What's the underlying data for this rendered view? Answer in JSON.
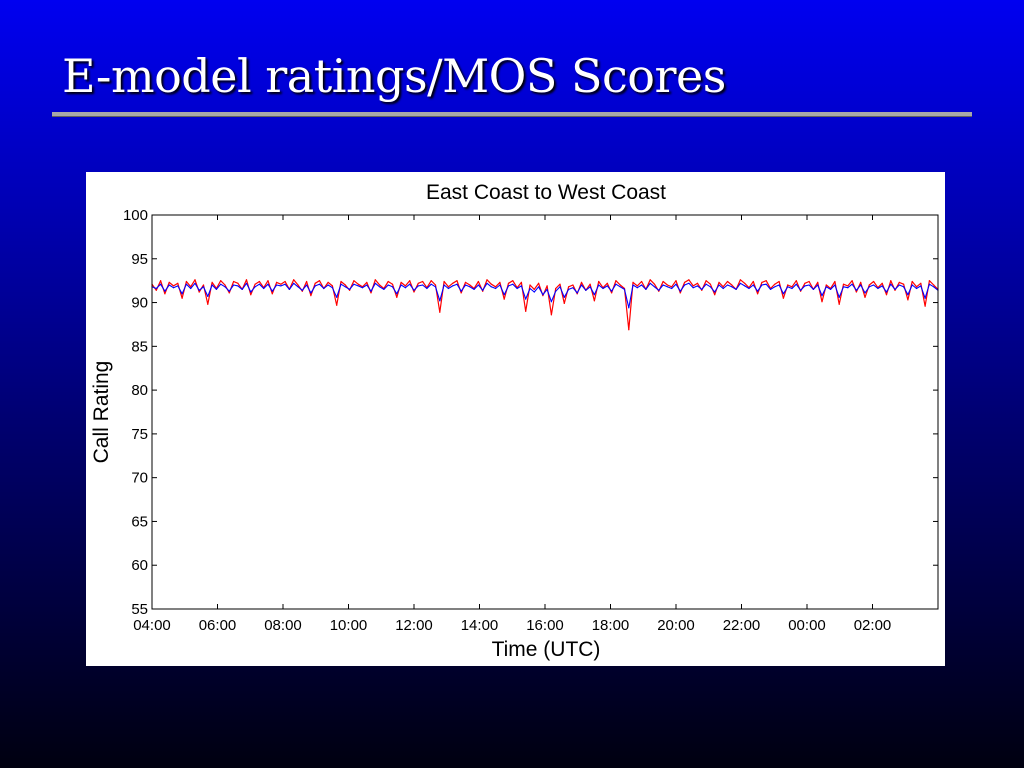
{
  "slide": {
    "title": "E-model ratings/MOS Scores"
  },
  "chart_data": {
    "type": "line",
    "title": "East Coast to West Coast",
    "xlabel": "Time (UTC)",
    "ylabel": "Call Rating",
    "ylim": [
      55,
      100
    ],
    "xlim_hours": [
      0,
      24
    ],
    "grid": false,
    "x_ticks": [
      "04:00",
      "06:00",
      "08:00",
      "10:00",
      "12:00",
      "14:00",
      "16:00",
      "18:00",
      "20:00",
      "22:00",
      "00:00",
      "02:00"
    ],
    "y_ticks": [
      55,
      60,
      65,
      70,
      75,
      80,
      85,
      90,
      95,
      100
    ],
    "series_colors": [
      "#ff0000",
      "#0000ff"
    ],
    "series": [
      {
        "color": "#ff0000",
        "values": [
          92.1,
          91.4,
          92.5,
          91.0,
          92.3,
          91.9,
          92.2,
          90.5,
          92.4,
          91.8,
          92.6,
          91.2,
          92.0,
          89.8,
          92.3,
          91.6,
          92.5,
          92.0,
          91.1,
          92.4,
          92.2,
          91.5,
          92.6,
          90.9,
          92.1,
          92.4,
          91.7,
          92.5,
          91.0,
          92.3,
          92.1,
          92.4,
          91.5,
          92.6,
          92.0,
          91.3,
          92.4,
          90.8,
          92.2,
          92.5,
          91.6,
          92.3,
          91.9,
          89.7,
          92.4,
          92.0,
          91.4,
          92.5,
          92.1,
          91.8,
          92.3,
          91.1,
          92.6,
          92.0,
          91.6,
          92.4,
          92.1,
          90.6,
          92.3,
          91.9,
          92.5,
          91.2,
          92.2,
          92.4,
          91.7,
          92.5,
          92.0,
          88.9,
          92.4,
          91.8,
          92.2,
          92.5,
          91.1,
          92.3,
          92.0,
          91.6,
          92.4,
          91.3,
          92.6,
          92.1,
          91.8,
          92.3,
          90.4,
          92.2,
          92.5,
          91.7,
          92.3,
          89.0,
          92.0,
          91.5,
          92.2,
          90.8,
          91.9,
          88.6,
          91.6,
          92.1,
          89.9,
          91.8,
          92.0,
          91.0,
          92.3,
          91.4,
          92.1,
          90.2,
          92.4,
          91.7,
          92.2,
          91.1,
          92.5,
          92.0,
          91.6,
          86.9,
          92.3,
          91.9,
          92.4,
          91.5,
          92.6,
          92.1,
          91.3,
          92.4,
          92.0,
          91.8,
          92.5,
          91.1,
          92.3,
          92.6,
          91.9,
          92.2,
          91.4,
          92.5,
          92.1,
          90.9,
          92.3,
          91.8,
          92.4,
          92.0,
          91.5,
          92.6,
          92.2,
          91.7,
          92.4,
          91.0,
          92.3,
          92.5,
          91.6,
          92.1,
          92.4,
          90.5,
          92.0,
          91.8,
          92.5,
          91.3,
          92.2,
          92.4,
          91.5,
          92.3,
          90.1,
          92.0,
          91.6,
          92.4,
          89.8,
          92.1,
          91.9,
          92.5,
          91.2,
          92.3,
          90.6,
          92.0,
          92.4,
          91.7,
          92.2,
          90.9,
          92.5,
          91.4,
          92.3,
          92.1,
          90.3,
          92.4,
          91.8,
          92.2,
          89.6,
          92.5,
          92.0,
          91.5
        ]
      },
      {
        "color": "#0000ff",
        "values": [
          91.8,
          91.6,
          92.1,
          91.3,
          92.0,
          91.7,
          91.9,
          91.0,
          92.1,
          91.6,
          92.2,
          91.4,
          91.8,
          90.7,
          92.0,
          91.5,
          92.1,
          91.8,
          91.3,
          92.0,
          91.9,
          91.5,
          92.2,
          91.2,
          91.8,
          92.1,
          91.6,
          92.1,
          91.3,
          92.0,
          91.9,
          92.1,
          91.5,
          92.2,
          91.8,
          91.4,
          92.0,
          91.1,
          91.9,
          92.1,
          91.6,
          92.0,
          91.7,
          90.6,
          92.1,
          91.8,
          91.5,
          92.1,
          91.9,
          91.7,
          92.0,
          91.3,
          92.2,
          91.8,
          91.5,
          92.0,
          91.8,
          91.0,
          92.0,
          91.7,
          92.1,
          91.4,
          91.9,
          92.0,
          91.6,
          92.1,
          91.8,
          90.2,
          92.0,
          91.6,
          91.9,
          92.1,
          91.3,
          92.0,
          91.8,
          91.5,
          92.0,
          91.4,
          92.2,
          91.8,
          91.6,
          92.0,
          90.9,
          91.9,
          92.1,
          91.6,
          91.9,
          90.4,
          91.6,
          91.2,
          91.8,
          90.9,
          91.5,
          90.1,
          91.3,
          91.8,
          90.6,
          91.5,
          91.7,
          91.1,
          92.0,
          91.4,
          91.8,
          90.9,
          92.0,
          91.6,
          91.9,
          91.3,
          92.1,
          91.8,
          91.5,
          89.4,
          92.0,
          91.7,
          92.0,
          91.5,
          92.2,
          91.8,
          91.4,
          92.0,
          91.8,
          91.6,
          92.1,
          91.3,
          92.0,
          92.2,
          91.7,
          91.9,
          91.5,
          92.1,
          91.8,
          91.2,
          92.0,
          91.6,
          92.0,
          91.8,
          91.5,
          92.2,
          91.9,
          91.6,
          92.0,
          91.3,
          92.0,
          92.1,
          91.5,
          91.8,
          92.0,
          91.0,
          91.8,
          91.6,
          92.1,
          91.4,
          91.9,
          92.0,
          91.5,
          92.0,
          90.8,
          91.8,
          91.5,
          92.0,
          90.6,
          91.8,
          91.7,
          92.1,
          91.4,
          92.0,
          91.1,
          91.8,
          92.0,
          91.6,
          91.9,
          91.2,
          92.1,
          91.5,
          92.0,
          91.8,
          90.9,
          92.0,
          91.6,
          91.9,
          90.5,
          92.1,
          91.8,
          91.4
        ]
      }
    ]
  }
}
